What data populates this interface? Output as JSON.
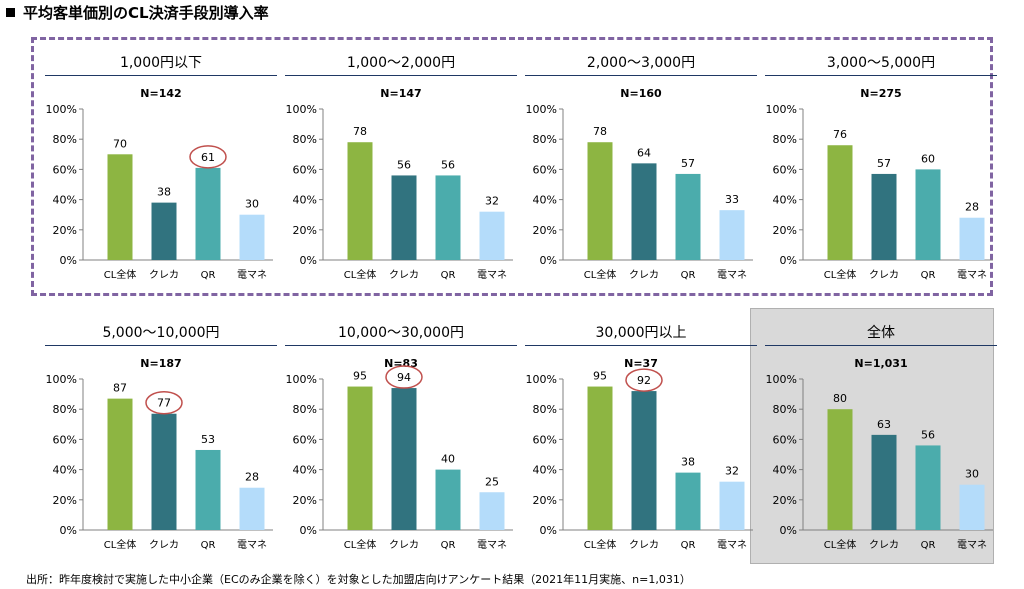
{
  "page": {
    "title": "平均客単価別のCL決済手段別導入率",
    "source": "出所：昨年度検討で実施した中小企業（ECのみ企業を除く）を対象とした加盟店向けアンケート結果（2021年11月実施、n=1,031）"
  },
  "colors": {
    "cl_total": "#8db542",
    "credit": "#31737f",
    "qr": "#4bacac",
    "emoney": "#b4dcfa",
    "highlight": "#c0504d",
    "group_border": "#8064a2",
    "overall_bg": "#d9d9d9",
    "rule": "#1f3864"
  },
  "chart_data": [
    {
      "type": "bar",
      "title": "1,000円以下",
      "n": "N=142",
      "categories": [
        "CL全体",
        "クレカ",
        "QR",
        "電マネ"
      ],
      "values": [
        70,
        38,
        61,
        30
      ],
      "highlight": [
        2
      ],
      "ylim": [
        0,
        100
      ],
      "yticks": [
        "0%",
        "20%",
        "40%",
        "60%",
        "80%",
        "100%"
      ],
      "grid": false,
      "legend": "none"
    },
    {
      "type": "bar",
      "title": "1,000～2,000円",
      "n": "N=147",
      "categories": [
        "CL全体",
        "クレカ",
        "QR",
        "電マネ"
      ],
      "values": [
        78,
        56,
        56,
        32
      ],
      "highlight": [],
      "ylim": [
        0,
        100
      ],
      "yticks": [
        "0%",
        "20%",
        "40%",
        "60%",
        "80%",
        "100%"
      ],
      "grid": false,
      "legend": "none"
    },
    {
      "type": "bar",
      "title": "2,000～3,000円",
      "n": "N=160",
      "categories": [
        "CL全体",
        "クレカ",
        "QR",
        "電マネ"
      ],
      "values": [
        78,
        64,
        57,
        33
      ],
      "highlight": [],
      "ylim": [
        0,
        100
      ],
      "yticks": [
        "0%",
        "20%",
        "40%",
        "60%",
        "80%",
        "100%"
      ],
      "grid": false,
      "legend": "none"
    },
    {
      "type": "bar",
      "title": "3,000～5,000円",
      "n": "N=275",
      "categories": [
        "CL全体",
        "クレカ",
        "QR",
        "電マネ"
      ],
      "values": [
        76,
        57,
        60,
        28
      ],
      "highlight": [],
      "ylim": [
        0,
        100
      ],
      "yticks": [
        "0%",
        "20%",
        "40%",
        "60%",
        "80%",
        "100%"
      ],
      "grid": false,
      "legend": "none"
    },
    {
      "type": "bar",
      "title": "5,000～10,000円",
      "n": "N=187",
      "categories": [
        "CL全体",
        "クレカ",
        "QR",
        "電マネ"
      ],
      "values": [
        87,
        77,
        53,
        28
      ],
      "highlight": [
        1
      ],
      "ylim": [
        0,
        100
      ],
      "yticks": [
        "0%",
        "20%",
        "40%",
        "60%",
        "80%",
        "100%"
      ],
      "grid": false,
      "legend": "none"
    },
    {
      "type": "bar",
      "title": "10,000～30,000円",
      "n": "N=83",
      "categories": [
        "CL全体",
        "クレカ",
        "QR",
        "電マネ"
      ],
      "values": [
        95,
        94,
        40,
        25
      ],
      "highlight": [
        1
      ],
      "ylim": [
        0,
        100
      ],
      "yticks": [
        "0%",
        "20%",
        "40%",
        "60%",
        "80%",
        "100%"
      ],
      "grid": false,
      "legend": "none"
    },
    {
      "type": "bar",
      "title": "30,000円以上",
      "n": "N=37",
      "categories": [
        "CL全体",
        "クレカ",
        "QR",
        "電マネ"
      ],
      "values": [
        95,
        92,
        38,
        32
      ],
      "highlight": [
        1
      ],
      "ylim": [
        0,
        100
      ],
      "yticks": [
        "0%",
        "20%",
        "40%",
        "60%",
        "80%",
        "100%"
      ],
      "grid": false,
      "legend": "none"
    },
    {
      "type": "bar",
      "title": "全体",
      "n": "N=1,031",
      "categories": [
        "CL全体",
        "クレカ",
        "QR",
        "電マネ"
      ],
      "values": [
        80,
        63,
        56,
        30
      ],
      "highlight": [],
      "ylim": [
        0,
        100
      ],
      "yticks": [
        "0%",
        "20%",
        "40%",
        "60%",
        "80%",
        "100%"
      ],
      "grid": false,
      "legend": "none"
    }
  ]
}
